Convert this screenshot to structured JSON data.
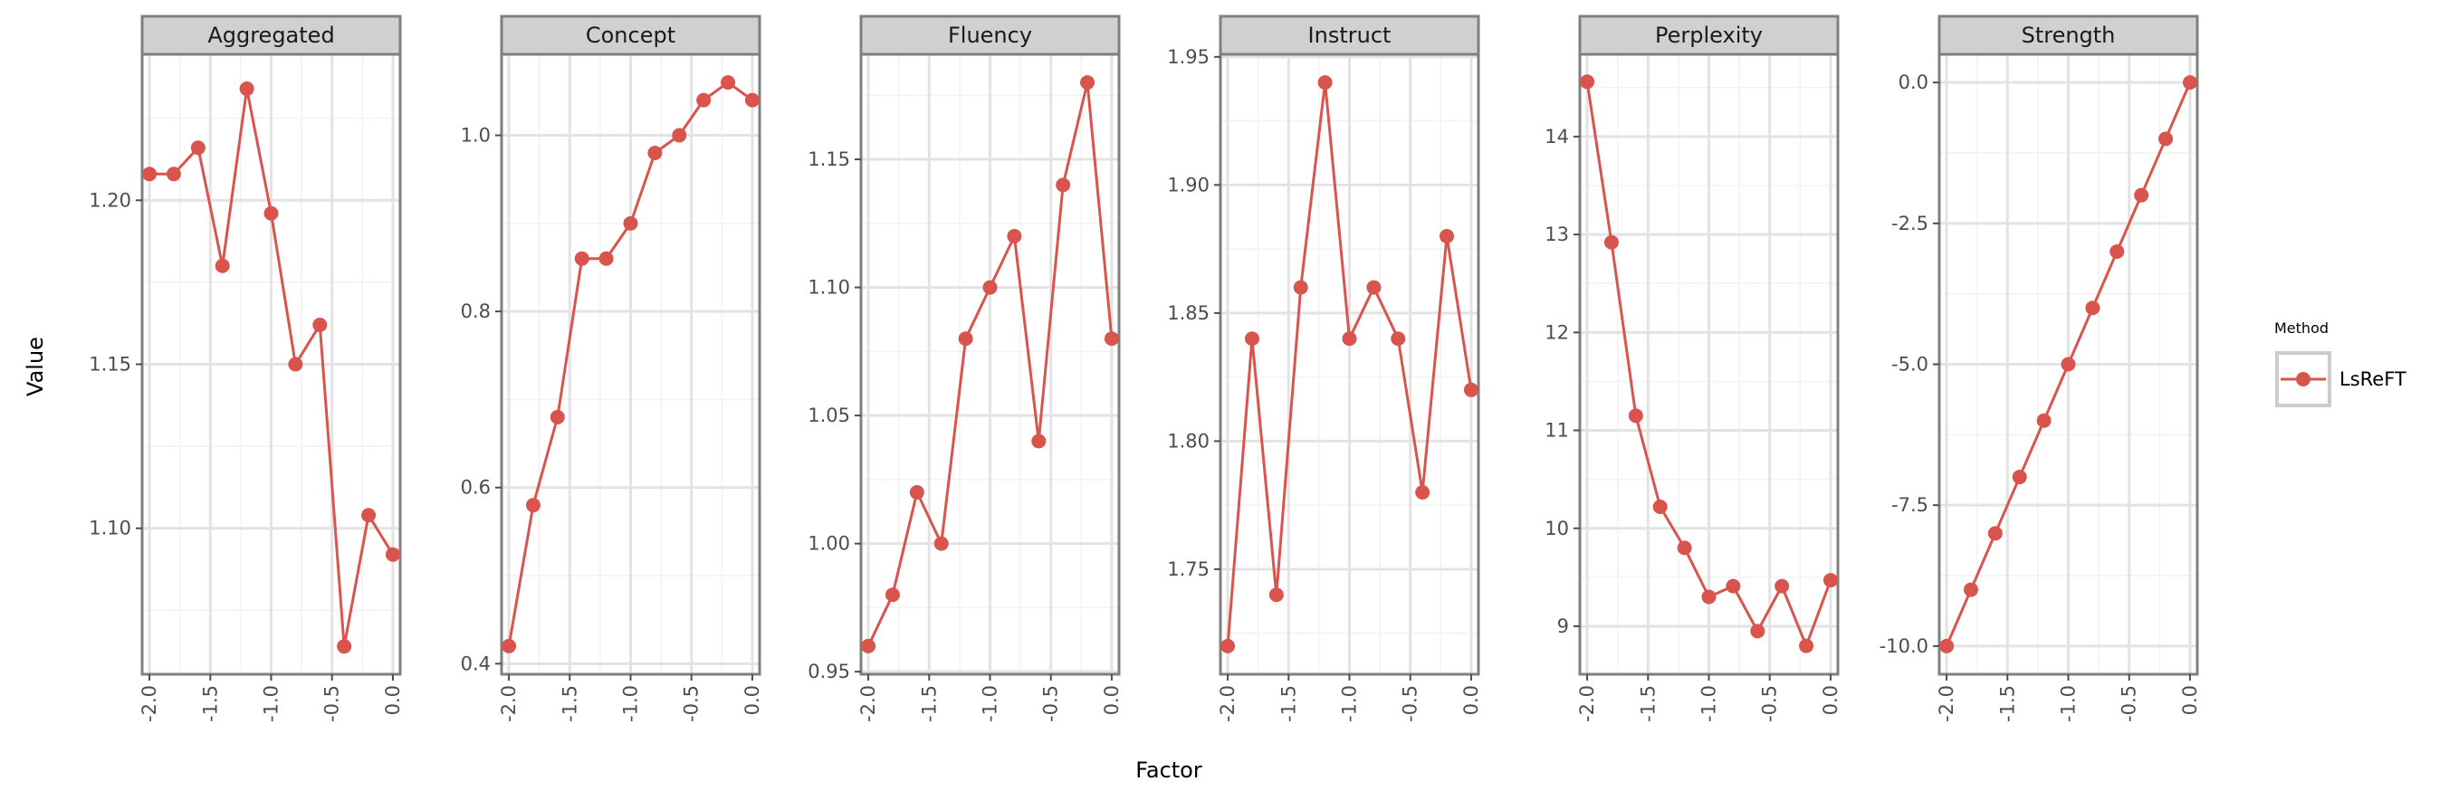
{
  "chart_data": {
    "type": "line",
    "xlabel": "Factor",
    "ylabel": "Value",
    "legend": {
      "title": "Method",
      "entries": [
        "LsReFT"
      ],
      "placement": "right"
    },
    "series_color": "#d9544d",
    "x_ticks": [
      "-2.0",
      "-1.5",
      "-1.0",
      "-0.5",
      "0.0"
    ],
    "x_tick_values": [
      -2.0,
      -1.5,
      -1.0,
      -0.5,
      0.0
    ],
    "xlim": [
      -2.06,
      0.06
    ],
    "x": [
      -2.0,
      -1.8,
      -1.6,
      -1.4,
      -1.2,
      -1.0,
      -0.8,
      -0.6,
      -0.4,
      -0.2,
      0.0
    ],
    "panels": [
      {
        "title": "Aggregated",
        "ylim": [
          1.0555,
          1.2445
        ],
        "y_ticks": [
          "1.10",
          "1.15",
          "1.20"
        ],
        "y_tick_values": [
          1.1,
          1.15,
          1.2
        ],
        "y_minor": [
          1.075,
          1.125,
          1.175,
          1.225
        ],
        "series": [
          {
            "name": "LsReFT",
            "values": [
              1.208,
              1.208,
              1.216,
              1.18,
              1.234,
              1.196,
              1.15,
              1.162,
              1.064,
              1.104,
              1.092
            ]
          }
        ]
      },
      {
        "title": "Concept",
        "ylim": [
          0.388,
          1.092
        ],
        "y_ticks": [
          "0.4",
          "0.6",
          "0.8",
          "1.0"
        ],
        "y_tick_values": [
          0.4,
          0.6,
          0.8,
          1.0
        ],
        "y_minor": [
          0.5,
          0.7,
          0.9
        ],
        "series": [
          {
            "name": "LsReFT",
            "values": [
              0.42,
              0.58,
              0.68,
              0.86,
              0.86,
              0.9,
              0.98,
              1.0,
              1.04,
              1.06,
              1.04
            ]
          }
        ]
      },
      {
        "title": "Fluency",
        "ylim": [
          0.949,
          1.191
        ],
        "y_ticks": [
          "0.95",
          "1.00",
          "1.05",
          "1.10",
          "1.15"
        ],
        "y_tick_values": [
          0.95,
          1.0,
          1.05,
          1.1,
          1.15
        ],
        "y_minor": [
          0.975,
          1.025,
          1.075,
          1.125,
          1.175
        ],
        "series": [
          {
            "name": "LsReFT",
            "values": [
              0.96,
              0.98,
              1.02,
              1.0,
              1.08,
              1.1,
              1.12,
              1.04,
              1.14,
              1.18,
              1.08
            ]
          }
        ]
      },
      {
        "title": "Instruct",
        "ylim": [
          1.709,
          1.951
        ],
        "y_ticks": [
          "1.75",
          "1.80",
          "1.85",
          "1.90",
          "1.95"
        ],
        "y_tick_values": [
          1.75,
          1.8,
          1.85,
          1.9,
          1.95
        ],
        "y_minor": [
          1.725,
          1.775,
          1.825,
          1.875,
          1.925
        ],
        "series": [
          {
            "name": "LsReFT",
            "values": [
              1.72,
              1.84,
              1.74,
              1.86,
              1.94,
              1.84,
              1.86,
              1.84,
              1.78,
              1.88,
              1.82
            ]
          }
        ]
      },
      {
        "title": "Perplexity",
        "ylim": [
          8.51,
          14.84
        ],
        "y_ticks": [
          "9",
          "10",
          "11",
          "12",
          "13",
          "14"
        ],
        "y_tick_values": [
          9,
          10,
          11,
          12,
          13,
          14
        ],
        "y_minor": [
          9.5,
          10.5,
          11.5,
          12.5,
          13.5,
          14.5
        ],
        "series": [
          {
            "name": "LsReFT",
            "values": [
              14.56,
              12.92,
              11.15,
              10.22,
              9.8,
              9.3,
              9.41,
              8.95,
              9.41,
              8.8,
              9.47
            ]
          }
        ]
      },
      {
        "title": "Strength",
        "ylim": [
          -10.5,
          0.5
        ],
        "y_ticks": [
          "-10.0",
          "-7.5",
          "-5.0",
          "-2.5",
          "0.0"
        ],
        "y_tick_values": [
          -10.0,
          -7.5,
          -5.0,
          -2.5,
          0.0
        ],
        "y_minor": [
          -8.75,
          -6.25,
          -3.75,
          -1.25
        ],
        "series": [
          {
            "name": "LsReFT",
            "values": [
              -10.0,
              -9.0,
              -8.0,
              -7.0,
              -6.0,
              -5.0,
              -4.0,
              -3.0,
              -2.0,
              -1.0,
              0.0
            ]
          }
        ]
      }
    ]
  }
}
